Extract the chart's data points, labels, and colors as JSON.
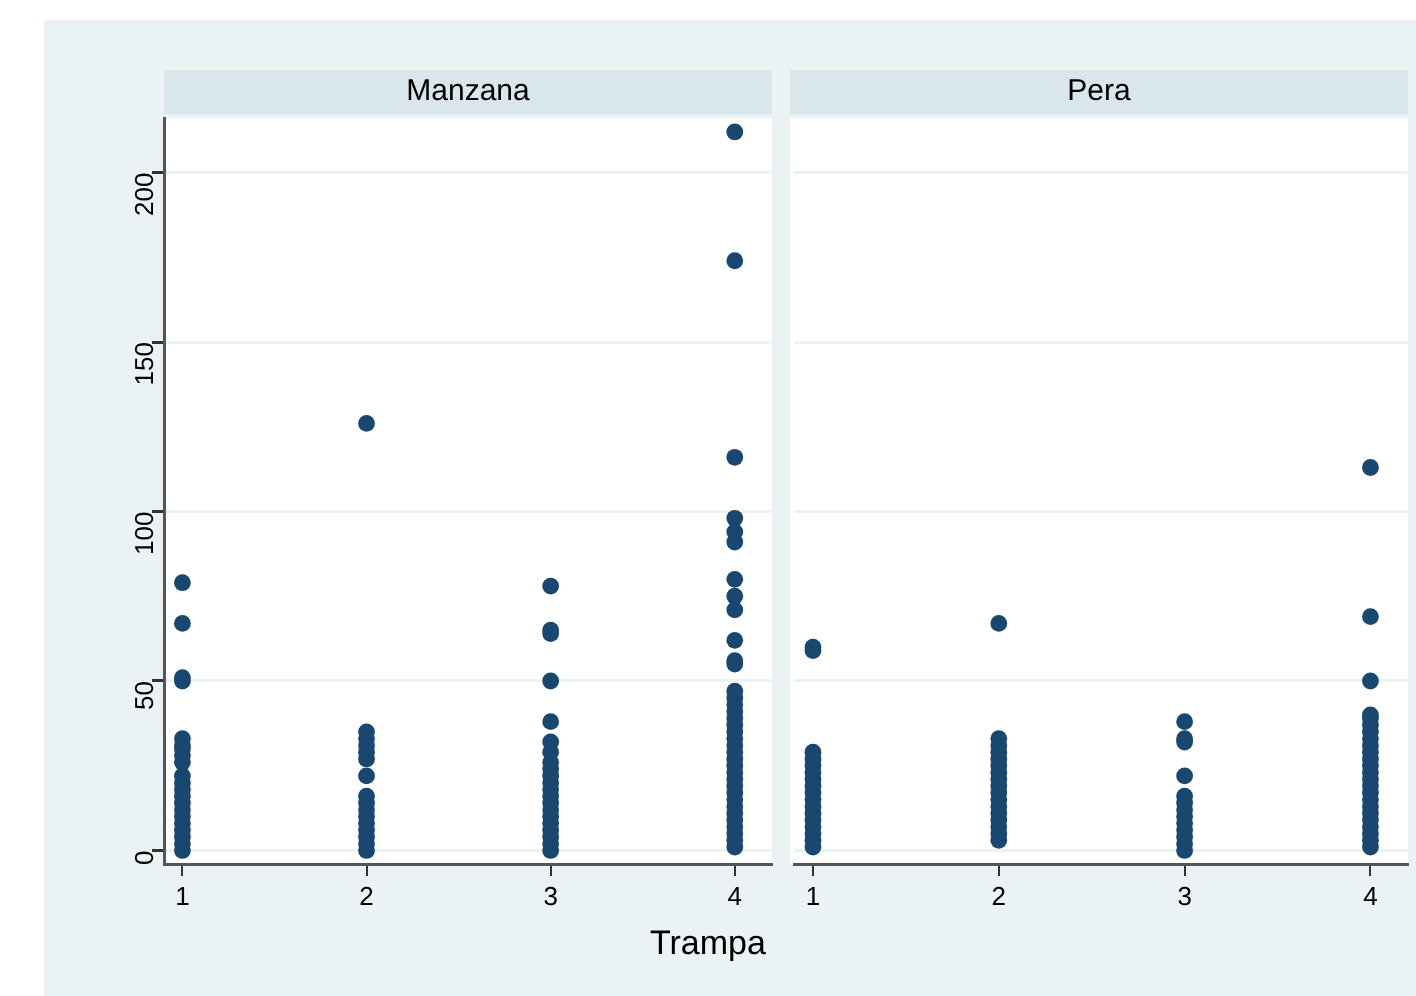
{
  "chart_data": [
    {
      "type": "scatter",
      "title": "Manzana",
      "xlabel": "Trampa",
      "color": "#1a476f",
      "marker": "circle",
      "grid": "y",
      "legend": false,
      "x": [
        1,
        1,
        1,
        1,
        1,
        1,
        1,
        1,
        1,
        1,
        1,
        1,
        1,
        1,
        1,
        1,
        1,
        1,
        1,
        1,
        1,
        2,
        2,
        2,
        2,
        2,
        2,
        2,
        2,
        2,
        2,
        2,
        2,
        2,
        2,
        2,
        2,
        3,
        3,
        3,
        3,
        3,
        3,
        3,
        3,
        3,
        3,
        3,
        3,
        3,
        3,
        3,
        3,
        3,
        3,
        3,
        3,
        3,
        4,
        4,
        4,
        4,
        4,
        4,
        4,
        4,
        4,
        4,
        4,
        4,
        4,
        4,
        4,
        4,
        4,
        4,
        4,
        4,
        4,
        4,
        4,
        4,
        4,
        4,
        4,
        4,
        4,
        4,
        4,
        4,
        4,
        4,
        4,
        4
      ],
      "values": [
        79,
        67,
        51,
        50,
        33,
        31,
        30,
        28,
        26,
        22,
        20,
        18,
        16,
        14,
        12,
        10,
        8,
        6,
        4,
        2,
        0,
        126,
        35,
        33,
        31,
        29,
        27,
        22,
        16,
        14,
        12,
        10,
        8,
        6,
        4,
        2,
        0,
        78,
        65,
        64,
        50,
        38,
        32,
        29,
        26,
        24,
        22,
        20,
        18,
        16,
        14,
        12,
        10,
        8,
        6,
        4,
        2,
        0,
        212,
        174,
        116,
        98,
        94,
        91,
        80,
        75,
        71,
        62,
        56,
        55,
        47,
        45,
        43,
        41,
        39,
        37,
        35,
        33,
        31,
        29,
        27,
        25,
        23,
        21,
        19,
        17,
        15,
        13,
        11,
        9,
        7,
        5,
        3,
        1
      ],
      "xlim": [
        0.9,
        4.2
      ],
      "xticks": [
        1,
        2,
        3,
        4
      ],
      "ylim": [
        -4,
        216
      ],
      "yticks": [
        0,
        50,
        100,
        150,
        200
      ]
    },
    {
      "type": "scatter",
      "title": "Pera",
      "color": "#1a476f",
      "marker": "circle",
      "grid": "y",
      "legend": false,
      "tick_labels": "x",
      "x": [
        1,
        1,
        1,
        1,
        1,
        1,
        1,
        1,
        1,
        1,
        1,
        1,
        1,
        1,
        1,
        1,
        1,
        2,
        2,
        2,
        2,
        2,
        2,
        2,
        2,
        2,
        2,
        2,
        2,
        2,
        2,
        2,
        2,
        2,
        3,
        3,
        3,
        3,
        3,
        3,
        3,
        3,
        3,
        3,
        3,
        3,
        3,
        4,
        4,
        4,
        4,
        4,
        4,
        4,
        4,
        4,
        4,
        4,
        4,
        4,
        4,
        4,
        4,
        4,
        4,
        4,
        4,
        4,
        4,
        4,
        4
      ],
      "values": [
        60,
        59,
        29,
        27,
        25,
        23,
        21,
        19,
        17,
        15,
        13,
        11,
        9,
        7,
        5,
        3,
        1,
        67,
        33,
        31,
        29,
        27,
        25,
        23,
        21,
        19,
        17,
        15,
        13,
        11,
        9,
        7,
        5,
        3,
        38,
        33,
        32,
        22,
        16,
        14,
        12,
        10,
        8,
        6,
        4,
        2,
        0,
        113,
        69,
        50,
        40,
        39,
        37,
        35,
        33,
        31,
        29,
        27,
        25,
        23,
        21,
        19,
        17,
        15,
        13,
        11,
        9,
        7,
        5,
        3,
        1
      ],
      "xlim": [
        0.9,
        4.2
      ],
      "xticks": [
        1,
        2,
        3,
        4
      ],
      "ylim": [
        -4,
        216
      ],
      "yticks": [
        0,
        50,
        100,
        150,
        200
      ]
    }
  ]
}
